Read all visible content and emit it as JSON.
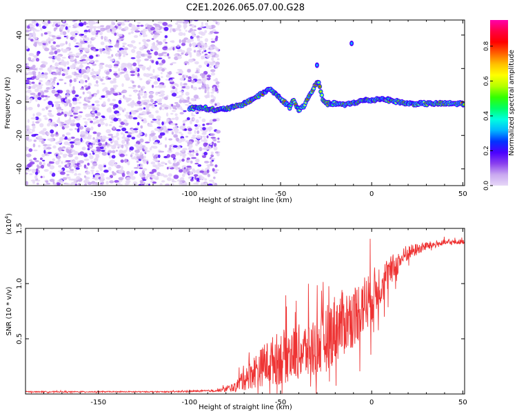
{
  "title": "C2E1.2026.065.07.00.G28",
  "chart_data": [
    {
      "type": "heatmap",
      "xlabel": "Height of straight line (km)",
      "ylabel": "Frequency (Hz)",
      "xlim": [
        -190,
        51
      ],
      "ylim": [
        -50,
        49
      ],
      "xticks": [
        -150,
        -100,
        -50,
        0,
        50
      ],
      "yticks": [
        -40,
        -20,
        0,
        20,
        40
      ],
      "xtick_labels": [
        "-150",
        "-100",
        "-50",
        "0",
        "50"
      ],
      "ytick_labels": [
        "-40",
        "-20",
        "0",
        "20",
        "40"
      ],
      "noise_region_x": [
        -190,
        -84
      ],
      "ridge": {
        "x": [
          -100,
          -95,
          -90,
          -85,
          -80,
          -75,
          -70,
          -65,
          -60,
          -56,
          -52,
          -48,
          -45,
          -43,
          -40,
          -37,
          -35,
          -33,
          -31,
          -29,
          -27,
          -25,
          -22,
          -18,
          -15,
          -12,
          -8,
          -4,
          0,
          5,
          10,
          15,
          20,
          30,
          40,
          51
        ],
        "y": [
          -4,
          -3,
          -4,
          -5,
          -4,
          -3,
          -1,
          2,
          5,
          8,
          4,
          0,
          -3,
          1,
          -5,
          -2,
          2,
          6,
          10,
          12,
          2,
          -1,
          -1,
          -1,
          -2,
          -1,
          0,
          1,
          1,
          2,
          1,
          0,
          -1,
          -1,
          -1,
          -1
        ]
      },
      "isolated_features": [
        {
          "x": -30,
          "y": 22
        },
        {
          "x": -11,
          "y": 35
        }
      ],
      "colorbar": {
        "label": "Normalized spectral amplitude",
        "range": [
          0.0,
          0.95
        ],
        "ticks": [
          0.0,
          0.2,
          0.4,
          0.6,
          0.8
        ],
        "tick_labels": [
          "0.0",
          "0.2",
          "0.4",
          "0.6",
          "0.8"
        ],
        "colors": [
          "#e6d8f7",
          "#c9a8f0",
          "#8a40ee",
          "#4b00ff",
          "#0033ff",
          "#00b7ff",
          "#00ffe0",
          "#00ff66",
          "#33ff00",
          "#b5ff00",
          "#ffff00",
          "#ffc000",
          "#ff6000",
          "#ff0000",
          "#ff0044",
          "#ff00aa"
        ]
      }
    },
    {
      "type": "line",
      "xlabel": "Height of straight line (km)",
      "ylabel": "SNR (10 * v/v)",
      "multiplier_label": "(x10",
      "multiplier_exp": "4",
      "xlim": [
        -190,
        51
      ],
      "ylim": [
        0,
        1.5
      ],
      "xticks": [
        -150,
        -100,
        -50,
        0,
        50
      ],
      "yticks": [
        0.5,
        1.0,
        1.5
      ],
      "xtick_labels": [
        "-150",
        "-100",
        "-50",
        "0",
        "50"
      ],
      "ytick_labels": [
        "0.5",
        "1.0",
        "1.5"
      ],
      "color": "#ee3333",
      "series": [
        {
          "name": "SNR",
          "x": [
            -190,
            -150,
            -110,
            -85,
            -75,
            -70,
            -65,
            -60,
            -55,
            -50,
            -45,
            -40,
            -35,
            -30,
            -25,
            -20,
            -15,
            -10,
            -5,
            0,
            5,
            10,
            15,
            20,
            30,
            40,
            51
          ],
          "y": [
            0.02,
            0.02,
            0.02,
            0.03,
            0.06,
            0.15,
            0.2,
            0.25,
            0.3,
            0.33,
            0.36,
            0.38,
            0.4,
            0.43,
            0.5,
            0.6,
            0.65,
            0.7,
            0.8,
            0.88,
            1.0,
            1.1,
            1.2,
            1.28,
            1.34,
            1.37,
            1.38
          ],
          "noise_amplitude": [
            0.005,
            0.005,
            0.005,
            0.01,
            0.04,
            0.12,
            0.15,
            0.18,
            0.22,
            0.25,
            0.25,
            0.25,
            0.27,
            0.3,
            0.3,
            0.32,
            0.3,
            0.28,
            0.28,
            0.25,
            0.2,
            0.15,
            0.1,
            0.07,
            0.04,
            0.025,
            0.02
          ]
        }
      ]
    }
  ]
}
